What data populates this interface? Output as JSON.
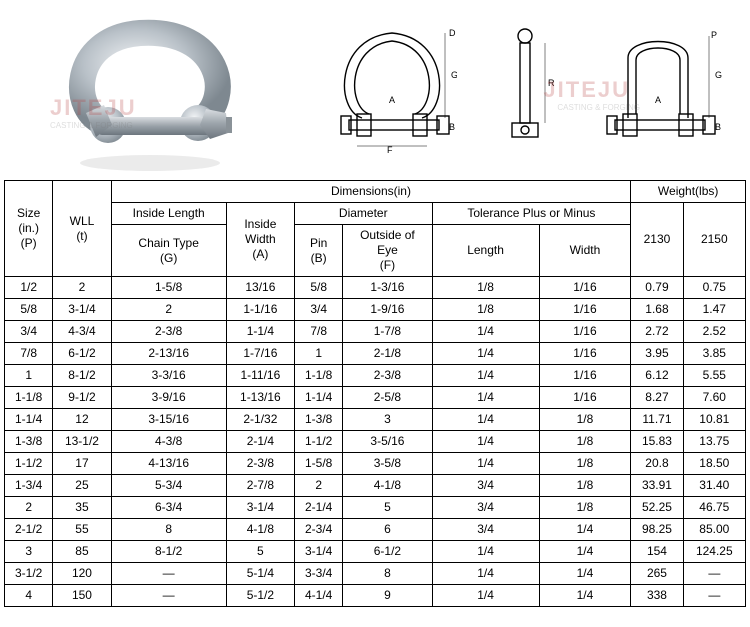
{
  "watermark": {
    "main": "JITEJU",
    "sub": "CASTING & FORGING",
    "color_main": "#b84040",
    "color_sub": "#7a7a7a"
  },
  "diagrams": {
    "labels": [
      "D",
      "G",
      "A",
      "F",
      "B",
      "R",
      "P"
    ]
  },
  "table": {
    "header_groups": {
      "dimensions": "Dimensions(in)",
      "weight": "Weight(lbs)",
      "inside_length": "Inside Length",
      "diameter": "Diameter",
      "tolerance": "Tolerance Plus or Minus"
    },
    "columns": {
      "size": "Size\n(in.)\n(P)",
      "wll": "WLL\n(t)",
      "chain_type": "Chain Type\n(G)",
      "inside_width": "Inside\nWidth\n(A)",
      "pin": "Pin\n(B)",
      "outside_eye": "Outside of\nEye\n(F)",
      "length": "Length",
      "width": "Width",
      "w2130": "2130",
      "w2150": "2150"
    },
    "rows": [
      [
        "1/2",
        "2",
        "1-5/8",
        "13/16",
        "5/8",
        "1-3/16",
        "1/8",
        "1/16",
        "0.79",
        "0.75"
      ],
      [
        "5/8",
        "3-1/4",
        "2",
        "1-1/16",
        "3/4",
        "1-9/16",
        "1/8",
        "1/16",
        "1.68",
        "1.47"
      ],
      [
        "3/4",
        "4-3/4",
        "2-3/8",
        "1-1/4",
        "7/8",
        "1-7/8",
        "1/4",
        "1/16",
        "2.72",
        "2.52"
      ],
      [
        "7/8",
        "6-1/2",
        "2-13/16",
        "1-7/16",
        "1",
        "2-1/8",
        "1/4",
        "1/16",
        "3.95",
        "3.85"
      ],
      [
        "1",
        "8-1/2",
        "3-3/16",
        "1-11/16",
        "1-1/8",
        "2-3/8",
        "1/4",
        "1/16",
        "6.12",
        "5.55"
      ],
      [
        "1-1/8",
        "9-1/2",
        "3-9/16",
        "1-13/16",
        "1-1/4",
        "2-5/8",
        "1/4",
        "1/16",
        "8.27",
        "7.60"
      ],
      [
        "1-1/4",
        "12",
        "3-15/16",
        "2-1/32",
        "1-3/8",
        "3",
        "1/4",
        "1/8",
        "11.71",
        "10.81"
      ],
      [
        "1-3/8",
        "13-1/2",
        "4-3/8",
        "2-1/4",
        "1-1/2",
        "3-5/16",
        "1/4",
        "1/8",
        "15.83",
        "13.75"
      ],
      [
        "1-1/2",
        "17",
        "4-13/16",
        "2-3/8",
        "1-5/8",
        "3-5/8",
        "1/4",
        "1/8",
        "20.8",
        "18.50"
      ],
      [
        "1-3/4",
        "25",
        "5-3/4",
        "2-7/8",
        "2",
        "4-1/8",
        "3/4",
        "1/8",
        "33.91",
        "31.40"
      ],
      [
        "2",
        "35",
        "6-3/4",
        "3-1/4",
        "2-1/4",
        "5",
        "3/4",
        "1/8",
        "52.25",
        "46.75"
      ],
      [
        "2-1/2",
        "55",
        "8",
        "4-1/8",
        "2-3/4",
        "6",
        "3/4",
        "1/4",
        "98.25",
        "85.00"
      ],
      [
        "3",
        "85",
        "8-1/2",
        "5",
        "3-1/4",
        "6-1/2",
        "1/4",
        "1/4",
        "154",
        "124.25"
      ],
      [
        "3-1/2",
        "120",
        "—",
        "5-1/4",
        "3-3/4",
        "8",
        "1/4",
        "1/4",
        "265",
        "—"
      ],
      [
        "4",
        "150",
        "—",
        "5-1/2",
        "4-1/4",
        "9",
        "1/4",
        "1/4",
        "338",
        "—"
      ]
    ]
  },
  "style": {
    "table_font_size": 12,
    "border_color": "#000000",
    "background": "#ffffff"
  }
}
